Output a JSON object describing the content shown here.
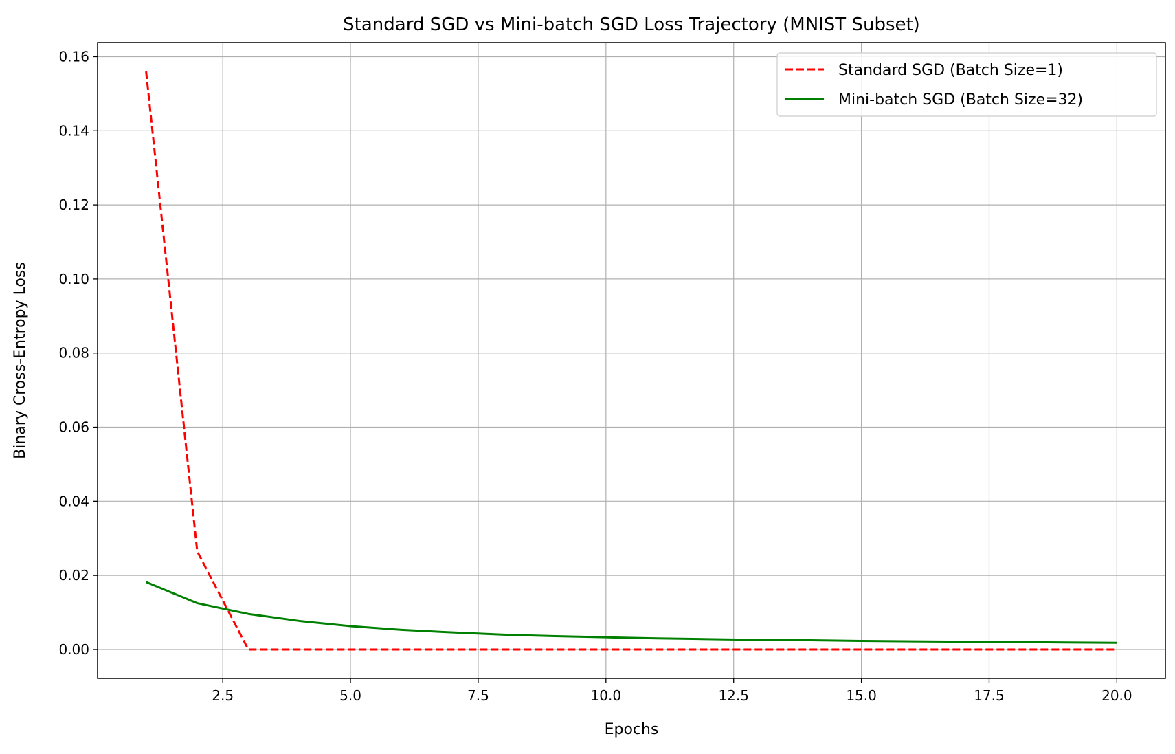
{
  "chart_data": {
    "type": "line",
    "title": "Standard SGD vs Mini-batch SGD Loss Trajectory (MNIST Subset)",
    "xlabel": "Epochs",
    "ylabel": "Binary Cross-Entropy Loss",
    "xlim": [
      0.05,
      20.95
    ],
    "ylim": [
      -0.0078,
      0.1638
    ],
    "xticks": [
      2.5,
      5.0,
      7.5,
      10.0,
      12.5,
      15.0,
      17.5,
      20.0
    ],
    "xtick_labels": [
      "2.5",
      "5.0",
      "7.5",
      "10.0",
      "12.5",
      "15.0",
      "17.5",
      "20.0"
    ],
    "yticks": [
      0.0,
      0.02,
      0.04,
      0.06,
      0.08,
      0.1,
      0.12,
      0.14,
      0.16
    ],
    "ytick_labels": [
      "0.00",
      "0.02",
      "0.04",
      "0.06",
      "0.08",
      "0.10",
      "0.12",
      "0.14",
      "0.16"
    ],
    "grid": true,
    "legend_position": "top-right",
    "x": [
      1,
      2,
      3,
      4,
      5,
      6,
      7,
      8,
      9,
      10,
      11,
      12,
      13,
      14,
      15,
      16,
      17,
      18,
      19,
      20
    ],
    "series": [
      {
        "name": "Standard SGD (Batch Size=1)",
        "color": "#ff0000",
        "style": "dashed",
        "values": [
          0.156,
          0.0265,
          0.0,
          0.0,
          0.0,
          0.0,
          0.0,
          0.0,
          0.0,
          0.0,
          0.0,
          0.0,
          0.0,
          0.0,
          0.0,
          0.0,
          0.0,
          0.0,
          0.0,
          0.0
        ]
      },
      {
        "name": "Mini-batch SGD (Batch Size=32)",
        "color": "#008000",
        "style": "solid",
        "values": [
          0.0182,
          0.0125,
          0.0096,
          0.0077,
          0.0063,
          0.0053,
          0.0046,
          0.004,
          0.0036,
          0.0033,
          0.003,
          0.0028,
          0.0026,
          0.0025,
          0.0023,
          0.0022,
          0.0021,
          0.002,
          0.0019,
          0.0018
        ]
      }
    ]
  }
}
